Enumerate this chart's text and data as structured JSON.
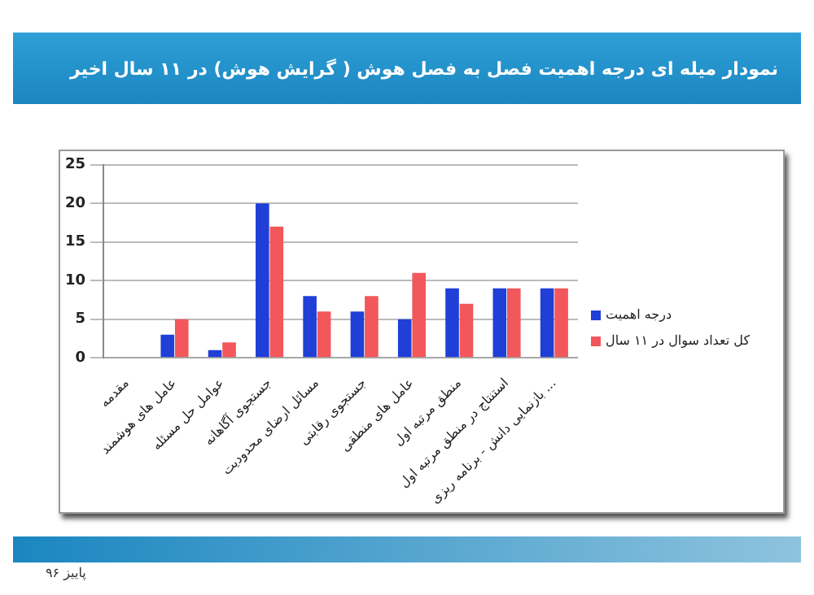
{
  "chart_data": {
    "type": "bar",
    "title": "نمودار میله ای  درجه اهمیت فصل به فصل هوش ( گرایش هوش) در ۱۱ سال اخیر",
    "categories": [
      "مقدمه",
      "عامل های هوشمند",
      "عوامل حل مسئله",
      "جستجوی آگاهانه",
      "مسائل ارضای محدودیت",
      "جستجوی رقابتی",
      "عامل های منطقی",
      "منطق مرتبه اول",
      "استنتاج در منطق مرتبه اول",
      "بازنمایی دانش - برنامه ریزی ..."
    ],
    "series": [
      {
        "name": "درجه اهمیت",
        "color": "#1f3fd6",
        "values": [
          0,
          3,
          1,
          20,
          8,
          6,
          5,
          9,
          9,
          9
        ]
      },
      {
        "name": "کل تعداد سوال در ۱۱ سال",
        "color": "#f2575c",
        "values": [
          0,
          5,
          2,
          17,
          6,
          8,
          11,
          7,
          9,
          9
        ]
      }
    ],
    "ylim": [
      0,
      25
    ],
    "yticks": [
      0,
      5,
      10,
      15,
      20,
      25
    ],
    "grid": "y",
    "legend": "right",
    "annotations": [
      "پاییز ۹۶"
    ]
  }
}
